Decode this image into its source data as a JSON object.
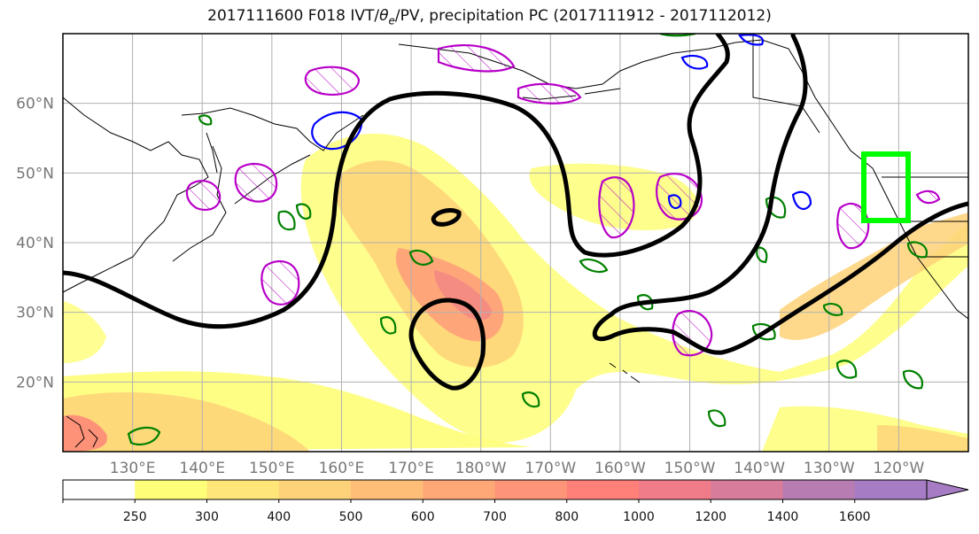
{
  "title": {
    "prefix": "2017111600 F018 IVT/",
    "theta_symbol": "θ",
    "theta_sub": "e",
    "suffix": "/PV, precipitation PC (2017111912 - 2017112012)"
  },
  "axes": {
    "lat_ticks": [
      {
        "value": 60,
        "label": "60°N"
      },
      {
        "value": 50,
        "label": "50°N"
      },
      {
        "value": 40,
        "label": "40°N"
      },
      {
        "value": 30,
        "label": "30°N"
      },
      {
        "value": 20,
        "label": "20°N"
      }
    ],
    "lon_ticks": [
      {
        "value": 130,
        "label": "130°E"
      },
      {
        "value": 140,
        "label": "140°E"
      },
      {
        "value": 150,
        "label": "150°E"
      },
      {
        "value": 160,
        "label": "160°E"
      },
      {
        "value": 170,
        "label": "170°E"
      },
      {
        "value": 180,
        "label": "180°W"
      },
      {
        "value": 190,
        "label": "170°W"
      },
      {
        "value": 200,
        "label": "160°W"
      },
      {
        "value": 210,
        "label": "150°W"
      },
      {
        "value": 220,
        "label": "140°W"
      },
      {
        "value": 230,
        "label": "130°W"
      },
      {
        "value": 240,
        "label": "120°W"
      }
    ],
    "lon_range": [
      120,
      250
    ],
    "lat_range": [
      10,
      70
    ],
    "grid": true
  },
  "colorbar": {
    "levels": [
      250,
      300,
      400,
      500,
      600,
      700,
      800,
      1000,
      1200,
      1400,
      1600
    ],
    "labels": [
      "250",
      "300",
      "400",
      "500",
      "600",
      "700",
      "800",
      "1000",
      "1200",
      "1400",
      "1600"
    ],
    "colors": [
      "#ffffff",
      "#fefe78",
      "#fee678",
      "#fed278",
      "#febe78",
      "#fea878",
      "#fe9478",
      "#fe8078",
      "#ef7c88",
      "#d87c9c",
      "#b77cb2",
      "#a67cc4"
    ],
    "extend": "max"
  },
  "style_colors": {
    "ivt_shade": "#fee678",
    "theta_e_contour": "#000000",
    "pv_contour": "#b800c8",
    "green_contour": "#008000",
    "blue_contour": "#0000ff",
    "target_box": "#00ff00",
    "coastline": "#000000",
    "grid": "#b0b0b0"
  }
}
